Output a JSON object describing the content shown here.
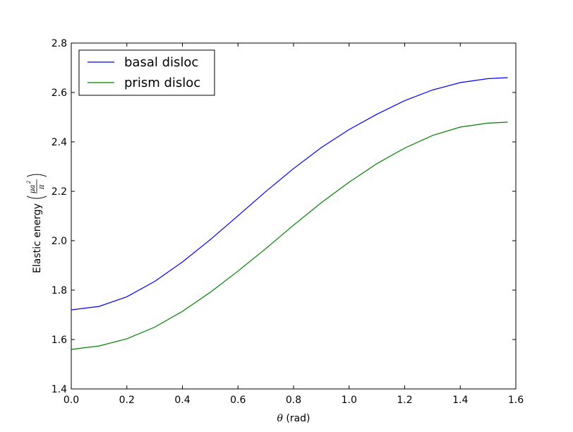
{
  "chart_data": {
    "type": "line",
    "xlabel_symbol": "θ",
    "xlabel_text": " (rad)",
    "ylabel_text": "Elastic energy",
    "ylabel_unit": {
      "numerator": "μa",
      "exponent": "2",
      "denominator": "π"
    },
    "xlim": [
      0.0,
      1.6
    ],
    "ylim": [
      1.4,
      2.8
    ],
    "xticks": [
      "0.0",
      "0.2",
      "0.4",
      "0.6",
      "0.8",
      "1.0",
      "1.2",
      "1.4",
      "1.6"
    ],
    "yticks": [
      "1.4",
      "1.6",
      "1.8",
      "2.0",
      "2.2",
      "2.4",
      "2.6",
      "2.8"
    ],
    "grid": false,
    "legend_position": "top-left",
    "series": [
      {
        "name": "basal disloc",
        "color": "#0000ff",
        "x": [
          0.0,
          0.1,
          0.2,
          0.3,
          0.4,
          0.5,
          0.6,
          0.7,
          0.8,
          0.9,
          1.0,
          1.1,
          1.2,
          1.3,
          1.4,
          1.5,
          1.5708
        ],
        "y": [
          1.72,
          1.734,
          1.773,
          1.835,
          1.914,
          2.004,
          2.101,
          2.199,
          2.292,
          2.377,
          2.45,
          2.512,
          2.567,
          2.61,
          2.64,
          2.656,
          2.66
        ]
      },
      {
        "name": "prism disloc",
        "color": "#008000",
        "x": [
          0.0,
          0.1,
          0.2,
          0.3,
          0.4,
          0.5,
          0.6,
          0.7,
          0.8,
          0.9,
          1.0,
          1.1,
          1.2,
          1.3,
          1.4,
          1.5,
          1.5708
        ],
        "y": [
          1.56,
          1.574,
          1.603,
          1.65,
          1.714,
          1.791,
          1.877,
          1.968,
          2.063,
          2.154,
          2.237,
          2.312,
          2.375,
          2.426,
          2.46,
          2.476,
          2.48
        ]
      }
    ]
  }
}
